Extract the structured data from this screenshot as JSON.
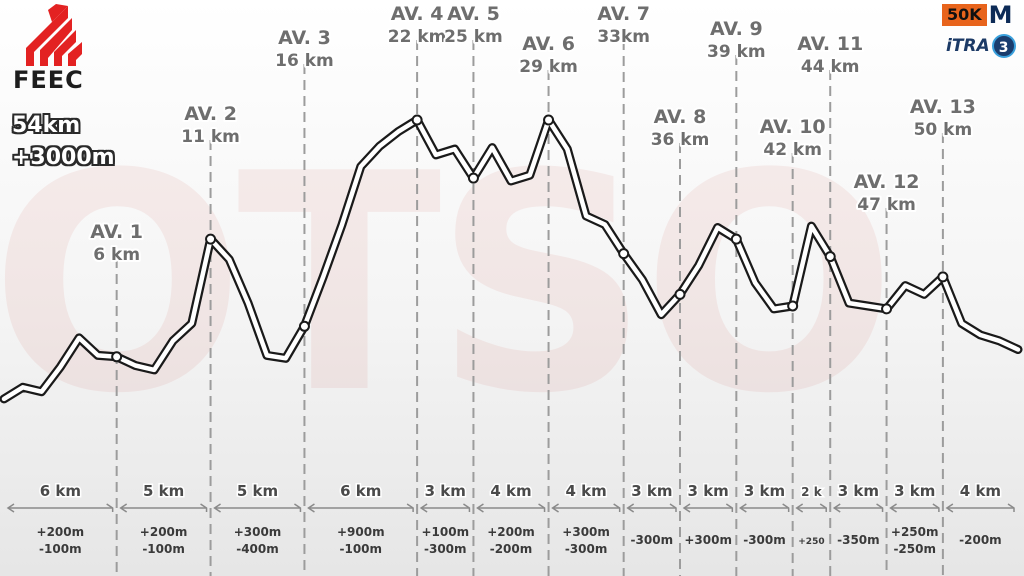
{
  "brand": {
    "logo_text": "FEEC",
    "watermark": "OTSO"
  },
  "race": {
    "distance": "54km",
    "elevation": "+3000m"
  },
  "badges": {
    "fifty_k": "50K",
    "m": "M",
    "itra_text": "iTRA",
    "itra_points": "3"
  },
  "colors": {
    "guide_line": "#9c9c9c",
    "profile_outline": "#1a1a1a",
    "profile_fill": "#ffffff",
    "label_fill": "#6e6e6e",
    "accent": "#c8433a"
  },
  "chart_data": {
    "type": "line",
    "title": "",
    "xlabel": "",
    "ylabel": "",
    "aid_stations": [
      {
        "name": "AV. 1",
        "km_label": "6 km",
        "km": 6
      },
      {
        "name": "AV. 2",
        "km_label": "11 km",
        "km": 11
      },
      {
        "name": "AV. 3",
        "km_label": "16 km",
        "km": 16
      },
      {
        "name": "AV. 4",
        "km_label": "22 km",
        "km": 22
      },
      {
        "name": "AV. 5",
        "km_label": "25 km",
        "km": 25
      },
      {
        "name": "AV. 6",
        "km_label": "29 km",
        "km": 29
      },
      {
        "name": "AV. 7",
        "km_label": "33km",
        "km": 33
      },
      {
        "name": "AV. 8",
        "km_label": "36 km",
        "km": 36
      },
      {
        "name": "AV. 9",
        "km_label": "39 km",
        "km": 39
      },
      {
        "name": "AV. 10",
        "km_label": "42 km",
        "km": 42
      },
      {
        "name": "AV. 11",
        "km_label": "44 km",
        "km": 44
      },
      {
        "name": "AV. 12",
        "km_label": "47 km",
        "km": 47
      },
      {
        "name": "AV. 13",
        "km_label": "50 km",
        "km": 50
      }
    ],
    "segments": [
      {
        "dist": "6 km",
        "up": "+200m",
        "down": "-100m"
      },
      {
        "dist": "5 km",
        "up": "+200m",
        "down": "-100m"
      },
      {
        "dist": "5 km",
        "up": "+300m",
        "down": "-400m"
      },
      {
        "dist": "6 km",
        "up": "+900m",
        "down": "-100m"
      },
      {
        "dist": "3 km",
        "up": "+100m",
        "down": "-300m"
      },
      {
        "dist": "4 km",
        "up": "+200m",
        "down": "-200m"
      },
      {
        "dist": "4 km",
        "up": "+300m",
        "down": "-300m"
      },
      {
        "dist": "3 km",
        "up": "",
        "down": "-300m"
      },
      {
        "dist": "3 km",
        "up": "+300m",
        "down": ""
      },
      {
        "dist": "3 km",
        "up": "",
        "down": "-300m"
      },
      {
        "dist": "2 k",
        "up": "+250",
        "down": ""
      },
      {
        "dist": "3 km",
        "up": "",
        "down": "-350m"
      },
      {
        "dist": "3 km",
        "up": "+250m",
        "down": "-250m"
      },
      {
        "dist": "4 km",
        "up": "",
        "down": "-200m"
      }
    ],
    "profile_km": [
      0,
      1,
      2,
      3,
      4,
      5,
      6,
      7,
      8,
      9,
      10,
      11,
      12,
      13,
      14,
      15,
      16,
      17,
      18,
      19,
      20,
      21,
      22,
      23,
      24,
      25,
      26,
      27,
      28,
      29,
      30,
      31,
      32,
      33,
      34,
      35,
      36,
      37,
      38,
      39,
      40,
      41,
      42,
      43,
      44,
      45,
      46,
      47,
      48,
      49,
      50,
      51,
      52,
      53,
      54
    ],
    "profile_elev": [
      100,
      140,
      125,
      210,
      310,
      250,
      245,
      215,
      200,
      300,
      360,
      650,
      580,
      430,
      250,
      240,
      350,
      520,
      700,
      900,
      970,
      1020,
      1060,
      940,
      960,
      860,
      965,
      850,
      870,
      1060,
      960,
      730,
      700,
      600,
      510,
      390,
      460,
      560,
      690,
      650,
      500,
      410,
      420,
      695,
      590,
      430,
      420,
      410,
      490,
      460,
      520,
      360,
      320,
      300,
      270
    ]
  }
}
